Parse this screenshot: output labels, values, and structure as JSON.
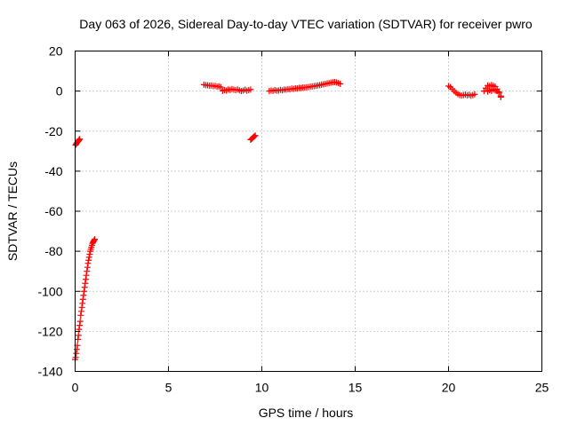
{
  "chart_data": {
    "type": "scatter",
    "title": "Day 063 of 2026, Sidereal Day-to-day VTEC variation (SDTVAR) for receiver pwro",
    "xlabel": "GPS time / hours",
    "ylabel": "SDTVAR / TECUs",
    "xlim": [
      0,
      25
    ],
    "ylim": [
      -140,
      20
    ],
    "x_ticks": [
      0,
      5,
      10,
      15,
      20,
      25
    ],
    "y_ticks": [
      -140,
      -120,
      -100,
      -80,
      -60,
      -40,
      -20,
      0,
      20
    ],
    "x_tick_labels": [
      "0",
      "5",
      "10",
      "15",
      "20",
      "25"
    ],
    "y_tick_labels": [
      "-140",
      "-120",
      "-100",
      "-80",
      "-60",
      "-40",
      "-20",
      "0",
      "20"
    ],
    "grid": true,
    "marker": "plus",
    "color": "#ff0000",
    "series": [
      {
        "x": [
          0.02,
          0.05,
          0.08,
          0.11,
          0.14,
          0.17,
          0.2,
          0.22,
          0.25
        ],
        "y": [
          -27,
          -26.5,
          -26,
          -25.8,
          -25.3,
          -25,
          -24.6,
          -24.2,
          -24
        ]
      },
      {
        "x": [
          0.0,
          0.03,
          0.06,
          0.09,
          0.12,
          0.15,
          0.18,
          0.21,
          0.24,
          0.27,
          0.3,
          0.33,
          0.36,
          0.39,
          0.42,
          0.45,
          0.48,
          0.51,
          0.54,
          0.57,
          0.6,
          0.63,
          0.66,
          0.69,
          0.72,
          0.75,
          0.78,
          0.81,
          0.84,
          0.87,
          0.9,
          0.93,
          0.96,
          0.99,
          1.02,
          1.05
        ],
        "y": [
          -134,
          -133,
          -131,
          -129,
          -127,
          -124,
          -122,
          -119,
          -117,
          -115,
          -112,
          -110,
          -108,
          -106,
          -104,
          -102,
          -100,
          -98,
          -96,
          -94,
          -92,
          -90,
          -88,
          -86,
          -84.5,
          -83,
          -81.5,
          -80,
          -79,
          -78,
          -77,
          -76,
          -75.5,
          -75,
          -74.5,
          -74
        ]
      },
      {
        "x": [
          6.9,
          7.0,
          7.1,
          7.2,
          7.3,
          7.4,
          7.5,
          7.6,
          7.7,
          7.8
        ],
        "y": [
          3.2,
          3.0,
          2.9,
          2.7,
          2.8,
          2.5,
          2.6,
          2.2,
          2.3,
          2.0
        ]
      },
      {
        "x": [
          7.9,
          8.0,
          8.1,
          8.2,
          8.3,
          8.4,
          8.5,
          8.6,
          8.7,
          8.8,
          8.9,
          9.0,
          9.1,
          9.2,
          9.3,
          9.4
        ],
        "y": [
          0.1,
          0.5,
          0.3,
          0.8,
          0.6,
          1.0,
          0.7,
          0.5,
          0.8,
          0.4,
          0.0,
          0.3,
          0.7,
          0.2,
          0.5,
          0.8
        ]
      },
      {
        "x": [
          9.4,
          9.45,
          9.5,
          9.55,
          9.6,
          9.65
        ],
        "y": [
          -24.3,
          -23.9,
          -23.5,
          -23.0,
          -22.6,
          -22.2
        ]
      },
      {
        "x": [
          10.4,
          10.5,
          10.6,
          10.7,
          10.8,
          10.9,
          11.0,
          11.1,
          11.2,
          11.3,
          11.4,
          11.5,
          11.6,
          11.7,
          11.8,
          11.9,
          12.0,
          12.1,
          12.2,
          12.3,
          12.4,
          12.5,
          12.6,
          12.7,
          12.8,
          12.9,
          13.0,
          13.1,
          13.2,
          13.3,
          13.4,
          13.5,
          13.6,
          13.7,
          13.8,
          13.9,
          14.0,
          14.1,
          14.2
        ],
        "y": [
          0.0,
          0.3,
          0.1,
          0.5,
          0.2,
          0.3,
          0.6,
          0.4,
          0.8,
          0.7,
          1.0,
          0.9,
          1.2,
          1.1,
          1.4,
          1.3,
          1.6,
          1.5,
          1.8,
          1.7,
          1.9,
          2.0,
          2.2,
          2.3,
          2.5,
          2.6,
          2.8,
          3.0,
          3.2,
          3.4,
          3.6,
          3.8,
          4.0,
          4.2,
          4.4,
          4.5,
          4.3,
          4.0,
          3.6
        ]
      },
      {
        "x": [
          20.0,
          20.1,
          20.2,
          20.3,
          20.4,
          20.5,
          20.6,
          20.7,
          20.8,
          20.9,
          21.0,
          21.1,
          21.2,
          21.3,
          21.4
        ],
        "y": [
          2.5,
          2.0,
          1.0,
          0.0,
          -0.8,
          -1.5,
          -2.0,
          -2.2,
          -2.0,
          -1.8,
          -2.1,
          -1.9,
          -2.3,
          -2.0,
          -1.6
        ]
      },
      {
        "x": [
          21.9,
          22.0,
          22.1,
          22.2,
          22.3,
          22.4,
          22.5,
          22.6,
          22.7,
          22.8
        ],
        "y": [
          0.0,
          1.5,
          2.8,
          2.5,
          3.0,
          2.6,
          2.2,
          1.0,
          -0.5,
          -2.5
        ]
      },
      {
        "x": [
          22.1,
          22.2,
          22.3,
          22.4,
          22.5,
          22.6,
          22.7,
          22.8
        ],
        "y": [
          -0.2,
          0.5,
          0.1,
          0.8,
          0.4,
          0.0,
          -1.0,
          -3.0
        ]
      }
    ]
  }
}
